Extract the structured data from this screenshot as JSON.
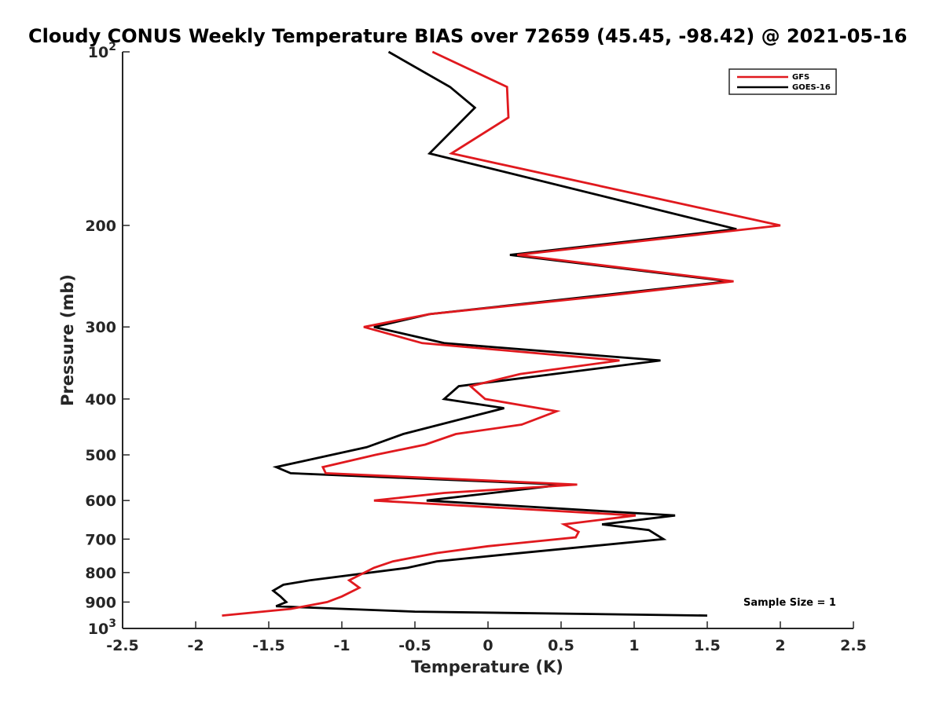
{
  "chart_data": {
    "type": "line",
    "title": "Cloudy CONUS Weekly Temperature BIAS over 72659 (45.45, -98.42) @ 2021-05-16",
    "xlabel": "Temperature (K)",
    "ylabel": "Pressure (mb)",
    "xlim": [
      -2.5,
      2.5
    ],
    "ylim": [
      100,
      1000
    ],
    "y_scale": "log",
    "y_reversed": true,
    "x_ticks": [
      "-2.5",
      "-2",
      "-1.5",
      "-1",
      "-0.5",
      "0",
      "0.5",
      "1",
      "1.5",
      "2",
      "2.5"
    ],
    "x_tick_values": [
      -2.5,
      -2,
      -1.5,
      -1,
      -0.5,
      0,
      0.5,
      1,
      1.5,
      2,
      2.5
    ],
    "y_ticks": [
      {
        "value": 100,
        "base": "10",
        "exp": "2"
      },
      {
        "value": 200,
        "label": "200"
      },
      {
        "value": 300,
        "label": "300"
      },
      {
        "value": 400,
        "label": "400"
      },
      {
        "value": 500,
        "label": "500"
      },
      {
        "value": 600,
        "label": "600"
      },
      {
        "value": 700,
        "label": "700"
      },
      {
        "value": 800,
        "label": "800"
      },
      {
        "value": 900,
        "label": "900"
      },
      {
        "value": 1000,
        "base": "10",
        "exp": "3"
      }
    ],
    "grid": false,
    "legend_position": "top-right",
    "series": [
      {
        "name": "GFS",
        "color": "#e0191e",
        "points": [
          [
            -0.38,
            100
          ],
          [
            0.13,
            115
          ],
          [
            0.14,
            130
          ],
          [
            -0.25,
            150
          ],
          [
            2.0,
            200
          ],
          [
            0.2,
            225
          ],
          [
            1.68,
            250
          ],
          [
            0.8,
            265
          ],
          [
            -0.4,
            285
          ],
          [
            -0.85,
            300
          ],
          [
            -0.45,
            320
          ],
          [
            0.9,
            343
          ],
          [
            0.22,
            362
          ],
          [
            -0.12,
            380
          ],
          [
            -0.02,
            400
          ],
          [
            0.47,
            420
          ],
          [
            0.23,
            443
          ],
          [
            -0.22,
            460
          ],
          [
            -0.43,
            480
          ],
          [
            -0.77,
            500
          ],
          [
            -1.13,
            525
          ],
          [
            -1.11,
            538
          ],
          [
            0.61,
            563
          ],
          [
            -0.3,
            582
          ],
          [
            -0.78,
            600
          ],
          [
            1.01,
            637
          ],
          [
            0.52,
            660
          ],
          [
            0.62,
            680
          ],
          [
            0.6,
            695
          ],
          [
            0.0,
            720
          ],
          [
            -0.35,
            740
          ],
          [
            -0.65,
            765
          ],
          [
            -0.78,
            785
          ],
          [
            -0.95,
            825
          ],
          [
            -0.88,
            850
          ],
          [
            -1.0,
            880
          ],
          [
            -1.1,
            900
          ],
          [
            -1.35,
            925
          ],
          [
            -1.82,
            950
          ]
        ]
      },
      {
        "name": "GOES-16",
        "color": "#000000",
        "points": [
          [
            -0.68,
            100
          ],
          [
            -0.26,
            115
          ],
          [
            -0.09,
            125
          ],
          [
            -0.4,
            150
          ],
          [
            1.7,
            203
          ],
          [
            0.15,
            225
          ],
          [
            1.65,
            250
          ],
          [
            -0.4,
            285
          ],
          [
            -0.78,
            300
          ],
          [
            -0.3,
            320
          ],
          [
            1.18,
            343
          ],
          [
            -0.2,
            380
          ],
          [
            -0.3,
            400
          ],
          [
            0.11,
            415
          ],
          [
            -0.13,
            430
          ],
          [
            -0.58,
            460
          ],
          [
            -0.83,
            485
          ],
          [
            -1.45,
            525
          ],
          [
            -1.35,
            538
          ],
          [
            0.52,
            563
          ],
          [
            -0.42,
            600
          ],
          [
            1.28,
            637
          ],
          [
            0.78,
            660
          ],
          [
            1.1,
            675
          ],
          [
            1.2,
            700
          ],
          [
            0.1,
            745
          ],
          [
            -0.35,
            765
          ],
          [
            -0.55,
            785
          ],
          [
            -1.22,
            825
          ],
          [
            -1.4,
            840
          ],
          [
            -1.47,
            860
          ],
          [
            -1.42,
            880
          ],
          [
            -1.38,
            900
          ],
          [
            -1.45,
            915
          ],
          [
            -1.23,
            920
          ],
          [
            -0.5,
            935
          ],
          [
            1.5,
            950
          ]
        ]
      }
    ],
    "annotation": "Sample Size = 1"
  }
}
